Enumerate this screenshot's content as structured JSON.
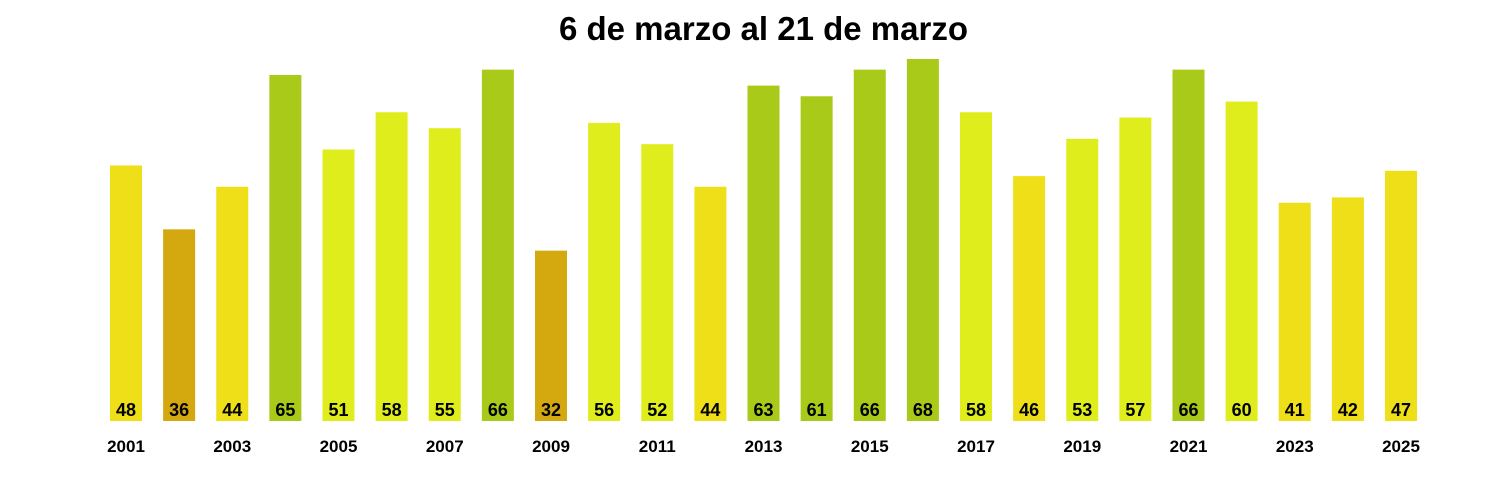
{
  "chart_data": {
    "type": "bar",
    "title": "6 de marzo al 21 de marzo",
    "xlabel": "",
    "ylabel": "",
    "ylim": [
      0,
      68
    ],
    "grid": false,
    "categories": [
      "2001",
      "2002",
      "2003",
      "2004",
      "2005",
      "2006",
      "2007",
      "2008",
      "2009",
      "2010",
      "2011",
      "2012",
      "2013",
      "2014",
      "2015",
      "2016",
      "2017",
      "2018",
      "2019",
      "2020",
      "2021",
      "2022",
      "2023",
      "2024",
      "2025"
    ],
    "x_tick_labels": [
      "2001",
      "2003",
      "2005",
      "2007",
      "2009",
      "2011",
      "2013",
      "2015",
      "2017",
      "2019",
      "2021",
      "2023",
      "2025"
    ],
    "values": [
      48,
      36,
      44,
      65,
      51,
      58,
      55,
      66,
      32,
      56,
      52,
      44,
      63,
      61,
      66,
      68,
      58,
      46,
      53,
      57,
      66,
      60,
      41,
      42,
      47
    ],
    "colors": {
      "low": "#D4A80F",
      "mid": "#EEDF18",
      "high": "#E0ED1C",
      "top": "#A9CA18"
    }
  }
}
